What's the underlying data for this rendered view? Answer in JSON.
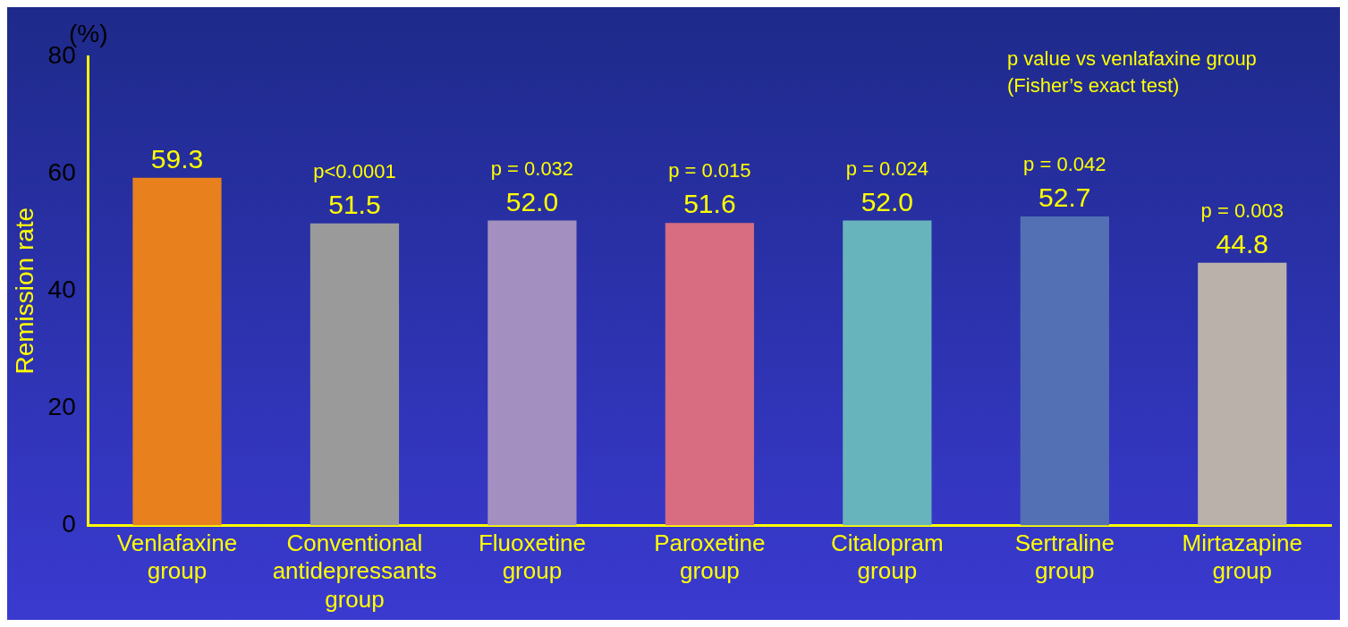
{
  "chart_data": {
    "type": "bar",
    "ylabel": "Remission rate",
    "categories": [
      "Venlafaxine group",
      "Conventional antidepressants group",
      "Fluoxetine group",
      "Paroxetine group",
      "Citalopram group",
      "Sertraline group",
      "Mirtazapine group"
    ],
    "values": [
      59.3,
      51.5,
      52.0,
      51.6,
      52.0,
      52.7,
      44.8
    ],
    "colors": [
      "#e8801e",
      "#9a9a9a",
      "#a490c0",
      "#d86c80",
      "#68b4bc",
      "#5470b4",
      "#bab2aa"
    ],
    "ylim": [
      0,
      80
    ],
    "yticks": [
      0,
      20,
      40,
      60,
      80
    ],
    "grid": false,
    "legend": false,
    "value_labels": [
      "59.3",
      "51.5",
      "52.0",
      "51.6",
      "52.0",
      "52.7",
      "44.8"
    ],
    "annotations": [
      "(%)",
      "p value vs venlafaxine group",
      "(Fisher’s exact test)",
      {
        "text": "p<0.0001",
        "x": "Conventional antidepressants group",
        "y": 51.5
      },
      {
        "text": "p = 0.032",
        "x": "Fluoxetine group",
        "y": 52.0
      },
      {
        "text": "p = 0.015",
        "x": "Paroxetine group",
        "y": 51.6
      },
      {
        "text": "p = 0.024",
        "x": "Citalopram group",
        "y": 52.0
      },
      {
        "text": "p = 0.042",
        "x": "Sertraline group",
        "y": 52.7
      },
      {
        "text": "p = 0.003",
        "x": "Mirtazapine group",
        "y": 44.8
      }
    ]
  }
}
